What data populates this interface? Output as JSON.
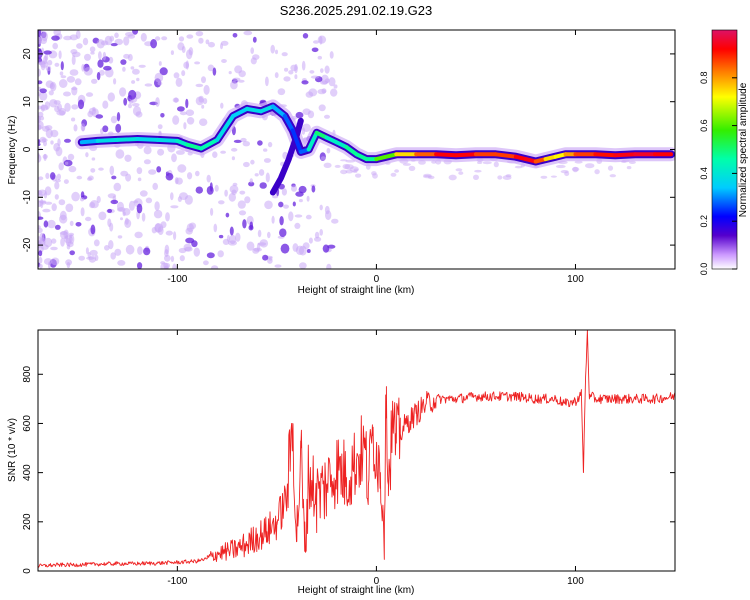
{
  "title": "S236.2025.291.02.19.G23",
  "colors": {
    "snr_line": "#ee2222",
    "ridge_low": "#3300cc",
    "ridge_high": "#dd1144",
    "noise": "#aa77ee",
    "frame": "#000000"
  },
  "chart_data": [
    {
      "type": "heatmap",
      "title": "S236.2025.291.02.19.G23",
      "xlabel": "Height of straight line (km)",
      "ylabel": "Frequency (Hz)",
      "xlim": [
        -170,
        150
      ],
      "ylim": [
        -25,
        25
      ],
      "xticks": [
        -100,
        0,
        100
      ],
      "yticks": [
        -20,
        -10,
        0,
        10,
        20
      ],
      "xtick_labels": [
        "-100",
        "0",
        "100"
      ],
      "ytick_labels": [
        "-20",
        "-10",
        "0",
        "10",
        "20"
      ],
      "ridge": {
        "description_values": "dominant frequency (Hz) vs height (km) with normalized amplitude",
        "x": [
          -148,
          -140,
          -130,
          -120,
          -110,
          -100,
          -95,
          -88,
          -80,
          -72,
          -65,
          -58,
          -52,
          -46,
          -42,
          -38,
          -34,
          -30,
          -25,
          -20,
          -15,
          -10,
          -5,
          0,
          10,
          20,
          30,
          40,
          50,
          60,
          70,
          75,
          80,
          85,
          90,
          95,
          100,
          110,
          120,
          130,
          140,
          148
        ],
        "y": [
          1.5,
          1.8,
          2.0,
          2.2,
          2.0,
          1.8,
          1.0,
          0.2,
          2.0,
          7.0,
          8.5,
          8.0,
          9.0,
          7.0,
          4.0,
          -0.5,
          0.0,
          3.5,
          2.5,
          1.5,
          0.5,
          -1.0,
          -2.0,
          -2.0,
          -1.0,
          -1.0,
          -1.0,
          -1.2,
          -1.0,
          -1.0,
          -1.5,
          -2.0,
          -2.5,
          -2.0,
          -1.5,
          -1.0,
          -1.0,
          -1.0,
          -1.2,
          -1.0,
          -1.0,
          -1.0
        ],
        "amplitude": [
          0.3,
          0.35,
          0.4,
          0.38,
          0.35,
          0.4,
          0.45,
          0.5,
          0.4,
          0.35,
          0.35,
          0.4,
          0.35,
          0.3,
          0.25,
          0.25,
          0.3,
          0.55,
          0.45,
          0.4,
          0.45,
          0.5,
          0.45,
          0.5,
          0.7,
          0.8,
          0.9,
          0.95,
          0.9,
          0.85,
          0.9,
          0.95,
          0.92,
          0.8,
          0.7,
          0.75,
          0.85,
          0.9,
          0.92,
          0.95,
          0.95,
          0.9
        ]
      },
      "secondary_branch": {
        "x": [
          -52,
          -48,
          -44,
          -40,
          -38
        ],
        "y": [
          -9,
          -6,
          -2,
          3,
          6
        ]
      },
      "colorbar": {
        "label": "Normalized spectral amplitude",
        "range": [
          0,
          1
        ],
        "ticks": [
          0.0,
          0.2,
          0.4,
          0.6,
          0.8
        ],
        "tick_labels": [
          "0.0",
          "0.2",
          "0.4",
          "0.6",
          "0.8"
        ]
      }
    },
    {
      "type": "line",
      "xlabel": "Height of straight line (km)",
      "ylabel": "SNR (10 * v/v)",
      "xlim": [
        -170,
        150
      ],
      "ylim": [
        0,
        980
      ],
      "xticks": [
        -100,
        0,
        100
      ],
      "yticks": [
        0,
        200,
        400,
        600,
        800
      ],
      "xtick_labels": [
        "-100",
        "0",
        "100"
      ],
      "ytick_labels": [
        "0",
        "200",
        "400",
        "600",
        "800"
      ],
      "series": [
        {
          "name": "SNR",
          "x": [
            -170,
            -160,
            -150,
            -140,
            -130,
            -120,
            -110,
            -100,
            -90,
            -85,
            -80,
            -75,
            -70,
            -65,
            -60,
            -55,
            -50,
            -45,
            -42,
            -40,
            -38,
            -36,
            -34,
            -30,
            -25,
            -20,
            -15,
            -10,
            -6,
            -4,
            -2,
            0,
            2,
            4,
            5,
            6,
            8,
            10,
            12,
            15,
            20,
            25,
            30,
            40,
            50,
            60,
            70,
            80,
            90,
            95,
            100,
            103,
            104,
            105,
            106,
            107,
            108,
            110,
            115,
            120,
            130,
            140,
            150
          ],
          "y": [
            20,
            25,
            25,
            28,
            30,
            30,
            32,
            35,
            40,
            50,
            70,
            80,
            90,
            110,
            140,
            160,
            200,
            300,
            600,
            120,
            500,
            80,
            400,
            300,
            350,
            420,
            380,
            450,
            500,
            350,
            550,
            500,
            400,
            200,
            750,
            350,
            600,
            520,
            560,
            600,
            640,
            680,
            700,
            700,
            710,
            710,
            710,
            700,
            700,
            680,
            690,
            720,
            400,
            760,
            980,
            700,
            710,
            700,
            700,
            700,
            700,
            700,
            710
          ]
        }
      ]
    }
  ]
}
